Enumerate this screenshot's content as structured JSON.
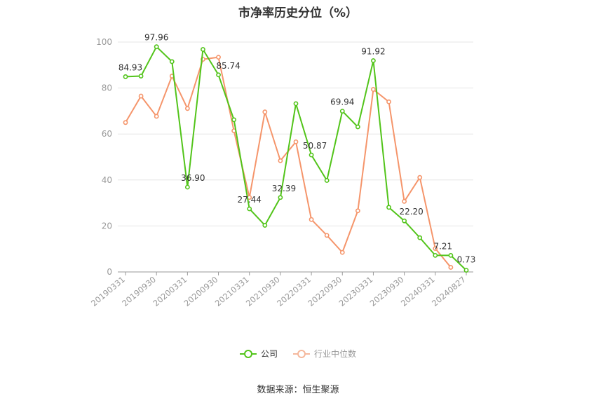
{
  "title": "市净率历史分位（%）",
  "source": "数据来源：恒生聚源",
  "chart_data": {
    "type": "line",
    "title": "市净率历史分位（%）",
    "ylim": [
      0,
      100
    ],
    "yticks": [
      0,
      20,
      40,
      60,
      80,
      100
    ],
    "xlabels": [
      "20190331",
      "20190930",
      "20200331",
      "20200930",
      "20210331",
      "20210930",
      "20220331",
      "20220930",
      "20230331",
      "20230930",
      "20240331",
      "20240827"
    ],
    "grid": true,
    "legend_position": "bottom-center",
    "series": [
      {
        "name": "公司",
        "color": "#52c41a",
        "values": [
          84.93,
          85.2,
          97.96,
          91.5,
          36.9,
          96.8,
          85.74,
          66.2,
          27.44,
          20.3,
          32.39,
          73.2,
          50.87,
          39.8,
          69.94,
          63.1,
          91.92,
          28.1,
          22.2,
          14.9,
          7.21,
          7.2,
          0.73
        ],
        "labels": {
          "0": "84.93",
          "2": "97.96",
          "4": "36.90",
          "6": "85.74",
          "8": "27.44",
          "10": "32.39",
          "12": "50.87",
          "14": "69.94",
          "16": "91.92",
          "18": "22.20",
          "20": "7.21",
          "22": "0.73"
        }
      },
      {
        "name": "行业中位数",
        "color": "#f5956b",
        "values": [
          65.0,
          76.5,
          67.7,
          85.2,
          71.1,
          92.5,
          93.4,
          61.4,
          32.4,
          69.6,
          48.4,
          56.6,
          22.8,
          15.9,
          8.5,
          26.6,
          79.4,
          74.0,
          30.7,
          41.1,
          10.2,
          2.0
        ]
      }
    ]
  }
}
